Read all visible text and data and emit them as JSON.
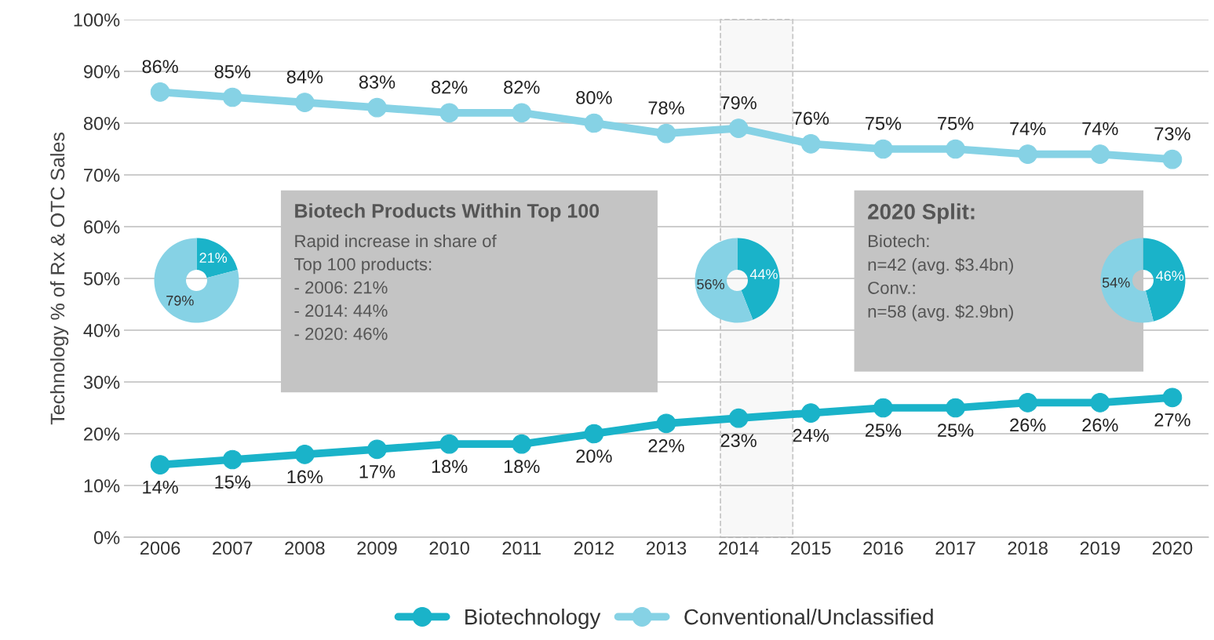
{
  "chart_data": [
    {
      "type": "line",
      "ylabel": "Technology % of Rx & OTC Sales",
      "x": [
        2006,
        2007,
        2008,
        2009,
        2010,
        2011,
        2012,
        2013,
        2014,
        2015,
        2016,
        2017,
        2018,
        2019,
        2020
      ],
      "xlim": [
        2005.5,
        2020.5
      ],
      "xticks": [
        2006,
        2007,
        2008,
        2009,
        2010,
        2011,
        2012,
        2013,
        2014,
        2015,
        2016,
        2017,
        2018,
        2019,
        2020
      ],
      "ylim": [
        0,
        100
      ],
      "yticks": [
        {
          "value": 0,
          "label": "0%"
        },
        {
          "value": 10,
          "label": "10%"
        },
        {
          "value": 20,
          "label": "20%"
        },
        {
          "value": 30,
          "label": "30%"
        },
        {
          "value": 40,
          "label": "40%"
        },
        {
          "value": 50,
          "label": "50%"
        },
        {
          "value": 60,
          "label": "60%"
        },
        {
          "value": 70,
          "label": "70%"
        },
        {
          "value": 80,
          "label": "80%"
        },
        {
          "value": 90,
          "label": "90%"
        },
        {
          "value": 100,
          "label": "100%"
        }
      ],
      "grid": "y",
      "legend": "bottom",
      "marker": "circle",
      "line_style": "solid",
      "series": [
        {
          "name": "Biotechnology",
          "color": "#1ab3c9",
          "values": [
            14,
            15,
            16,
            17,
            18,
            18,
            20,
            22,
            23,
            24,
            25,
            25,
            26,
            26,
            27
          ],
          "value_labels": [
            "14%",
            "15%",
            "16%",
            "17%",
            "18%",
            "18%",
            "20%",
            "22%",
            "23%",
            "24%",
            "25%",
            "25%",
            "26%",
            "26%",
            "27%"
          ]
        },
        {
          "name": "Conventional/Unclassified",
          "color": "#86d2e5",
          "values": [
            86,
            85,
            84,
            83,
            82,
            82,
            80,
            78,
            79,
            76,
            75,
            75,
            74,
            74,
            73
          ],
          "value_labels": [
            "86%",
            "85%",
            "84%",
            "83%",
            "82%",
            "82%",
            "80%",
            "78%",
            "79%",
            "76%",
            "75%",
            "75%",
            "74%",
            "74%",
            "73%"
          ]
        }
      ],
      "bands": [
        {
          "axis": "x",
          "from": 2013.75,
          "to": 2014.75,
          "color": "#c8c8c8"
        }
      ],
      "annotations": [
        "Biotech Products Within Top 100",
        "Rapid increase in share of\nTop 100 products:\n- 2006: 21%\n- 2014: 44%\n- 2020: 46%",
        "2020 Split:",
        "Biotech:\nn=42 (avg. $3.4bn)\nConv.:\nn=58 (avg. $2.9bn)"
      ]
    },
    {
      "type": "donut",
      "categories": [
        null,
        null
      ],
      "values": [
        21,
        79
      ],
      "colors": [
        "#1ab3c9",
        "#86d2e5"
      ],
      "value_labels": [
        "21%",
        "79%"
      ]
    },
    {
      "type": "donut",
      "categories": [
        null,
        null
      ],
      "values": [
        44,
        56
      ],
      "colors": [
        "#1ab3c9",
        "#86d2e5"
      ],
      "value_labels": [
        "44%",
        "56%"
      ]
    },
    {
      "type": "donut",
      "categories": [
        null,
        null
      ],
      "values": [
        46,
        54
      ],
      "colors": [
        "#1ab3c9",
        "#86d2e5"
      ],
      "value_labels": [
        "46%",
        "54%"
      ]
    }
  ]
}
